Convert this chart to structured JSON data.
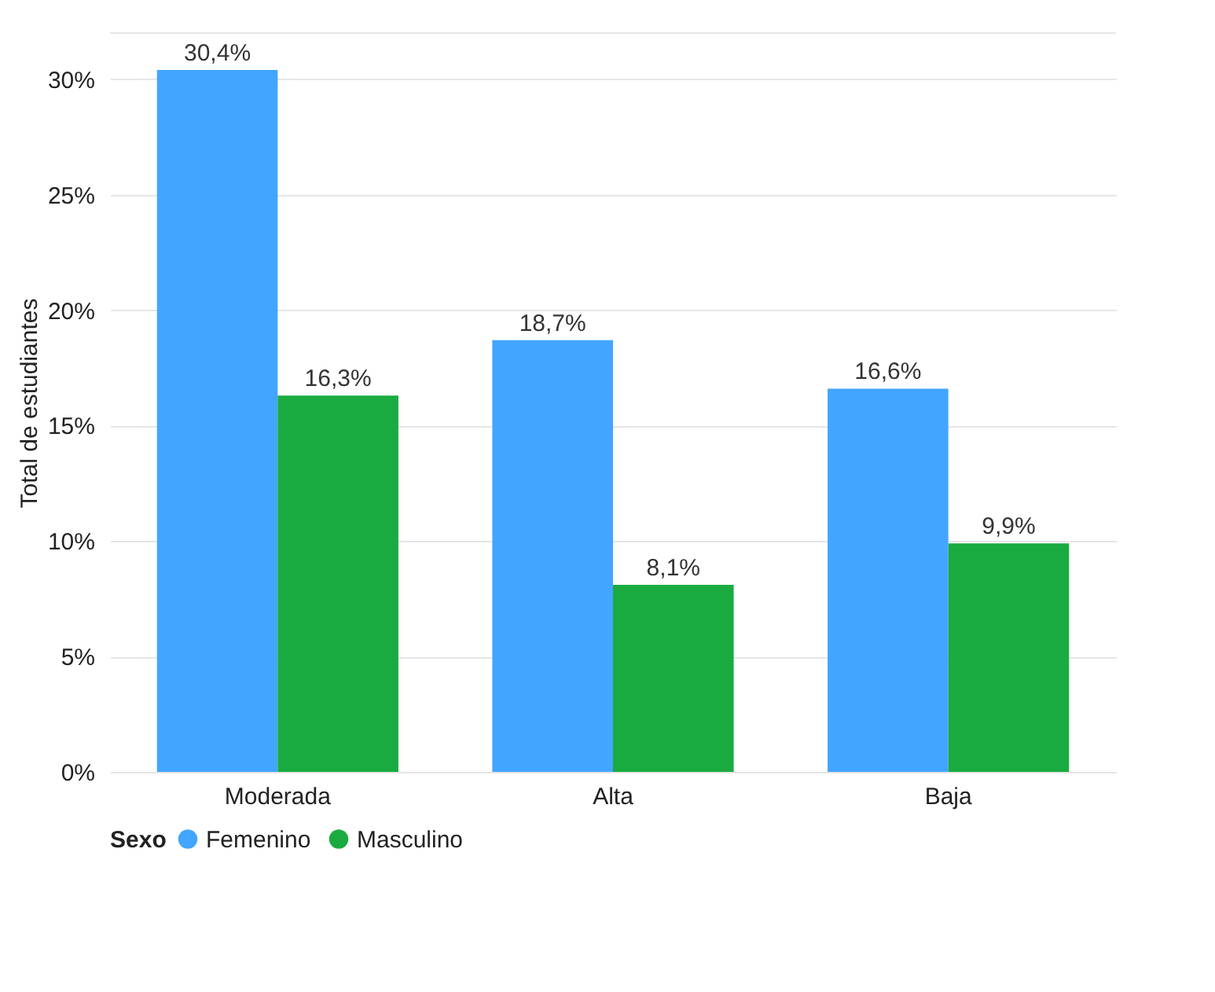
{
  "chart_data": {
    "type": "bar",
    "ylabel": "Total de estudiantes",
    "legend_title": "Sexo",
    "categories": [
      "Moderada",
      "Alta",
      "Baja"
    ],
    "series": [
      {
        "name": "Femenino",
        "color": "#42a5ff",
        "values": [
          30.4,
          18.7,
          16.6
        ],
        "value_labels": [
          "30,4%",
          "18,7%",
          "16,6%"
        ]
      },
      {
        "name": "Masculino",
        "color": "#1aab40",
        "values": [
          16.3,
          8.1,
          9.9
        ],
        "value_labels": [
          "16,3%",
          "8,1%",
          "9,9%"
        ]
      }
    ],
    "ylim": [
      0,
      32
    ],
    "yticks": [
      {
        "value": 0,
        "label": "0%"
      },
      {
        "value": 5,
        "label": "5%"
      },
      {
        "value": 10,
        "label": "10%"
      },
      {
        "value": 15,
        "label": "15%"
      },
      {
        "value": 20,
        "label": "20%"
      },
      {
        "value": 25,
        "label": "25%"
      },
      {
        "value": 30,
        "label": "30%"
      }
    ],
    "grid": "y",
    "legend": "bottom"
  }
}
